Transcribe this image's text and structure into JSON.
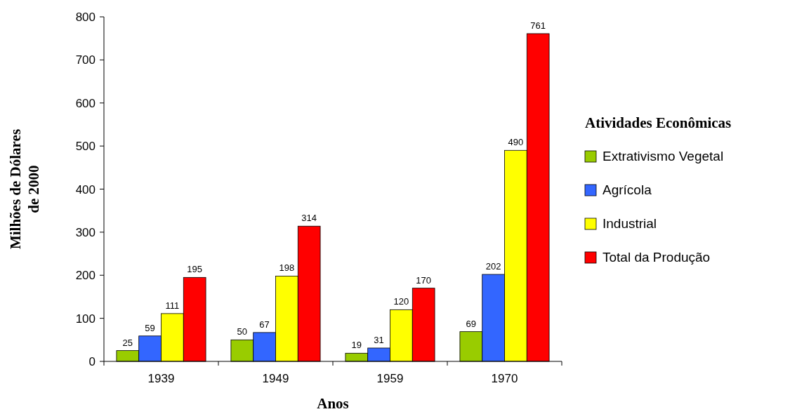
{
  "chart_data": {
    "type": "bar",
    "xlabel": "Anos",
    "ylabel": "Milhões de Dólares\nde 2000",
    "legend_title": "Atividades Econômicas",
    "categories": [
      "1939",
      "1949",
      "1959",
      "1970"
    ],
    "series": [
      {
        "name": "Extrativismo Vegetal",
        "color": "#99cc00",
        "values": [
          25,
          50,
          19,
          69
        ]
      },
      {
        "name": "Agrícola",
        "color": "#3366ff",
        "values": [
          59,
          67,
          31,
          202
        ]
      },
      {
        "name": "Industrial",
        "color": "#ffff00",
        "values": [
          111,
          198,
          120,
          490
        ]
      },
      {
        "name": "Total da Produção",
        "color": "#ff0000",
        "values": [
          195,
          314,
          170,
          761
        ]
      }
    ],
    "ylim": [
      0,
      800
    ],
    "yticks": [
      0,
      100,
      200,
      300,
      400,
      500,
      600,
      700,
      800
    ],
    "data_labels": true,
    "legend": "right",
    "grid": false
  }
}
